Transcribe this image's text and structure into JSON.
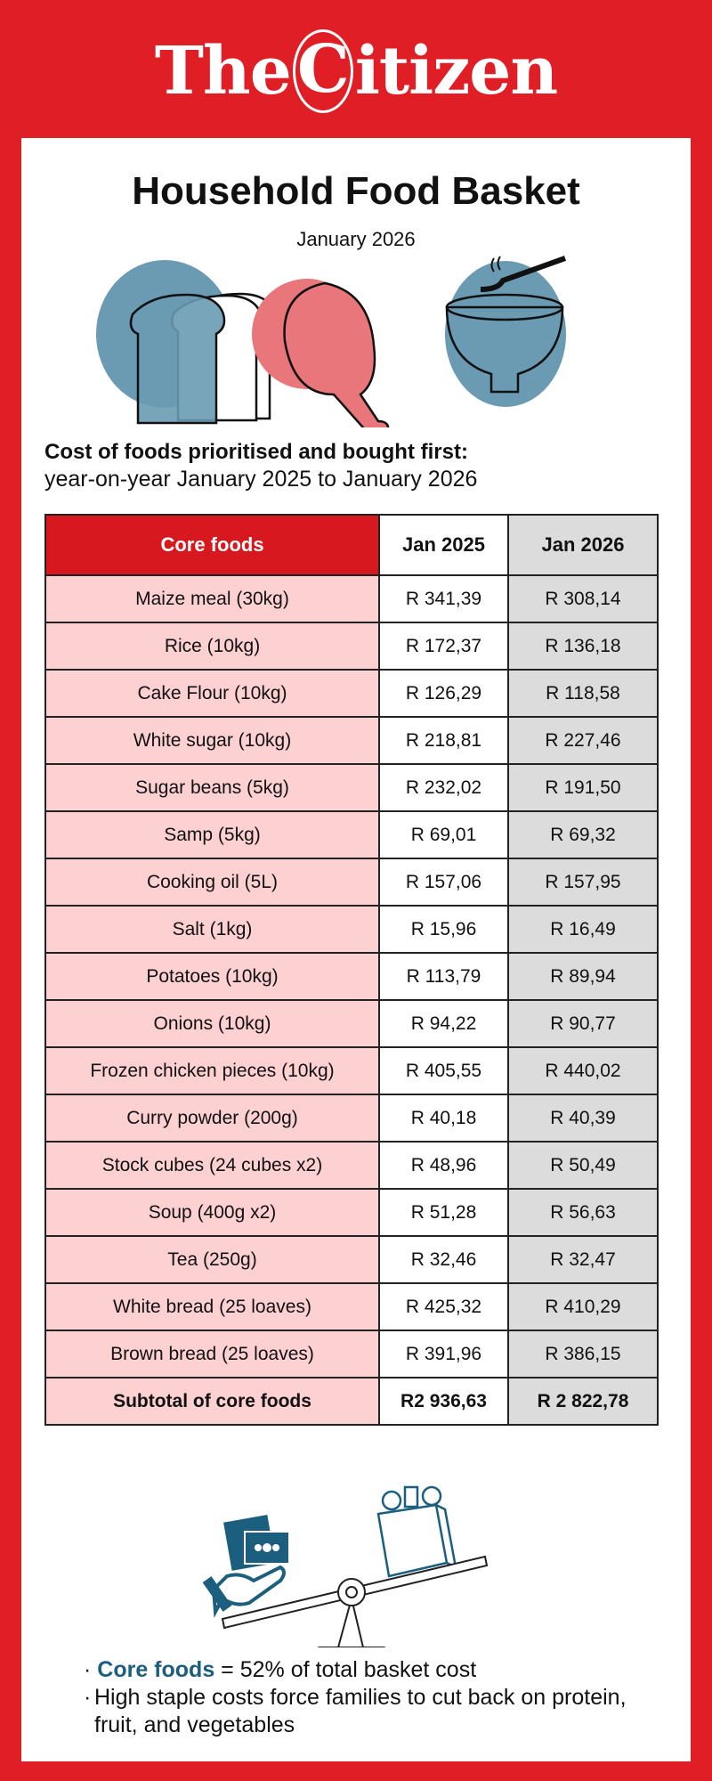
{
  "brand": {
    "logo_text": "The Citizen",
    "logo_left": "The",
    "logo_c": "C",
    "logo_right": "itizen"
  },
  "header": {
    "title": "Household Food Basket",
    "subtitle": "January 2026"
  },
  "intro": {
    "bold": "Cost of foods prioritised and bought first:",
    "text": "year-on-year January 2025 to January 2026"
  },
  "table": {
    "columns": [
      "Core foods",
      "Jan 2025",
      "Jan 2026"
    ],
    "rows": [
      [
        "Maize meal (30kg)",
        "R 341,39",
        "R 308,14"
      ],
      [
        "Rice (10kg)",
        "R 172,37",
        "R 136,18"
      ],
      [
        "Cake Flour (10kg)",
        "R 126,29",
        "R 118,58"
      ],
      [
        "White sugar (10kg)",
        "R 218,81",
        "R 227,46"
      ],
      [
        "Sugar beans (5kg)",
        "R 232,02",
        "R 191,50"
      ],
      [
        "Samp (5kg)",
        "R 69,01",
        "R 69,32"
      ],
      [
        "Cooking oil (5L)",
        "R 157,06",
        "R 157,95"
      ],
      [
        "Salt (1kg)",
        "R 15,96",
        "R 16,49"
      ],
      [
        "Potatoes (10kg)",
        "R 113,79",
        "R 89,94"
      ],
      [
        "Onions (10kg)",
        "R 94,22",
        "R 90,77"
      ],
      [
        "Frozen chicken pieces (10kg)",
        "R 405,55",
        "R 440,02"
      ],
      [
        "Curry powder (200g)",
        "R 40,18",
        "R 40,39"
      ],
      [
        "Stock cubes (24 cubes x2)",
        "R 48,96",
        "R 50,49"
      ],
      [
        "Soup (400g x2)",
        "R 51,28",
        "R 56,63"
      ],
      [
        "Tea (250g)",
        "R 32,46",
        "R 32,47"
      ],
      [
        "White bread (25 loaves)",
        "R 425,32",
        "R 410,29"
      ],
      [
        "Brown bread (25 loaves)",
        "R 391,96",
        "R 386,15"
      ]
    ],
    "subtotal": [
      "Subtotal of core foods",
      "R2 936,63",
      "R 2 822,78"
    ]
  },
  "notes": {
    "n1_bold": "Core foods",
    "n1_text": " = 52% of total basket cost",
    "n2_text": "High staple costs force families to cut back on protein, fruit, and vegetables",
    "bullet": "·"
  },
  "colors": {
    "brand_red": "#e01e26",
    "header_red": "#d7191f",
    "row_pink": "#fdd0d2",
    "col_grey": "#dcdcdc",
    "accent_blue": "#6a9bb3",
    "accent_teal": "#1b5e7e",
    "accent_pink": "#e8767a"
  },
  "icons": [
    "bread-icon",
    "chicken-drumstick-icon",
    "soup-bowl-icon",
    "money-hand-icon",
    "grocery-bag-icon",
    "balance-scale-icon"
  ]
}
